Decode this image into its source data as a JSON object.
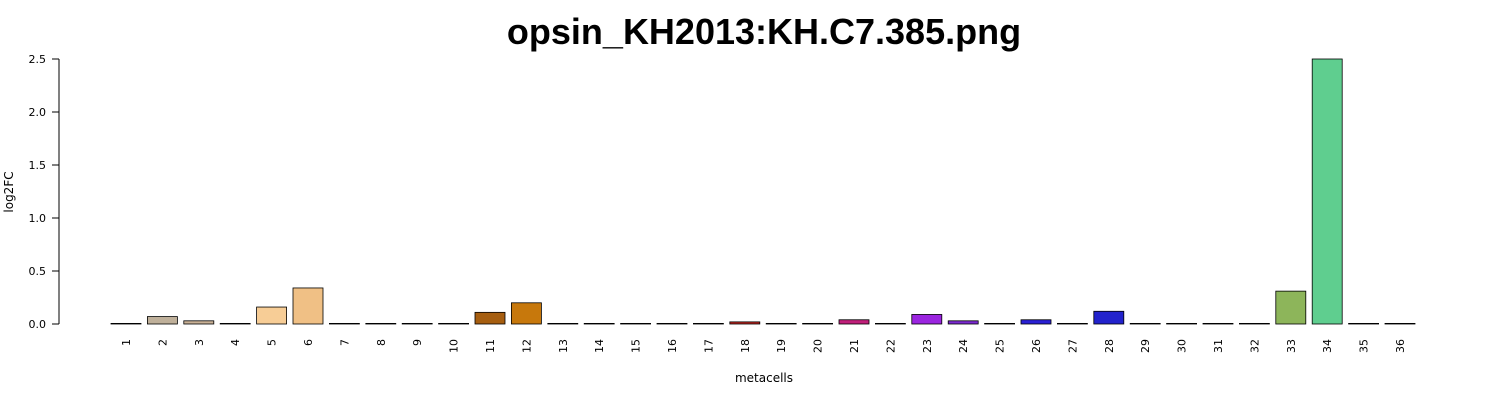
{
  "chart_data": {
    "type": "bar",
    "title": "opsin_KH2013:KH.C7.385.png",
    "xlabel": "metacells",
    "ylabel": "log2FC",
    "ylim": [
      0,
      2.5
    ],
    "yticks": [
      "0.0",
      "0.5",
      "1.0",
      "1.5",
      "2.0",
      "2.5"
    ],
    "categories": [
      "1",
      "2",
      "3",
      "4",
      "5",
      "6",
      "7",
      "8",
      "9",
      "10",
      "11",
      "12",
      "13",
      "14",
      "15",
      "16",
      "17",
      "18",
      "19",
      "20",
      "21",
      "22",
      "23",
      "24",
      "25",
      "26",
      "27",
      "28",
      "29",
      "30",
      "31",
      "32",
      "33",
      "34",
      "35",
      "36"
    ],
    "values": [
      0.0,
      0.07,
      0.03,
      0.0,
      0.16,
      0.34,
      0.0,
      0.0,
      0.0,
      0.0,
      0.11,
      0.2,
      0.0,
      0.0,
      0.0,
      0.0,
      0.0,
      0.02,
      0.0,
      0.0,
      0.04,
      0.0,
      0.09,
      0.03,
      0.0,
      0.04,
      0.0,
      0.12,
      0.0,
      0.0,
      0.0,
      0.0,
      0.31,
      2.5,
      0.0,
      0.0
    ],
    "colors": [
      "#d9d9d9",
      "#bfb09a",
      "#c9b196",
      "#d3bfa8",
      "#f7cd96",
      "#f0c085",
      "#d9c7a8",
      "#e0c8a0",
      "#d4b08c",
      "#c8a070",
      "#a65e10",
      "#c7780c",
      "#d09050",
      "#c08060",
      "#c06040",
      "#c04030",
      "#c03020",
      "#c0241e",
      "#c02040",
      "#c02060",
      "#c01f7a",
      "#b02090",
      "#9b25e0",
      "#7b2ad0",
      "#5a2ac8",
      "#2a20d4",
      "#2a30d0",
      "#2222cc",
      "#2050c0",
      "#2070b0",
      "#30909a",
      "#50a080",
      "#8db55a",
      "#5fce8f",
      "#60c8a0",
      "#70c0b0"
    ]
  }
}
